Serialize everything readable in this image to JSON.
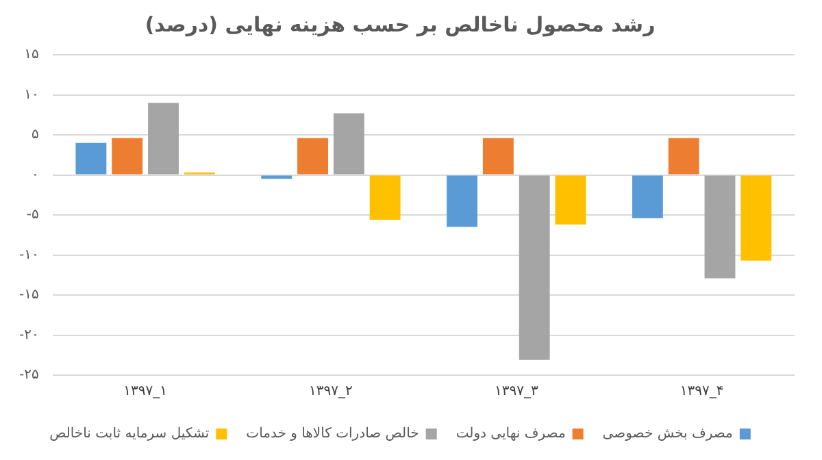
{
  "chart_data": {
    "type": "bar",
    "title": "رشد محصول ناخالص بر حسب هزینه نهایی (درصد)",
    "categories": [
      "۱۳۹۷_۱",
      "۱۳۹۷_۲",
      "۱۳۹۷_۳",
      "۱۳۹۷_۴"
    ],
    "series": [
      {
        "name": "مصرف بخش خصوصی",
        "color": "#5b9bd5",
        "values": [
          4.0,
          -0.5,
          -6.5,
          -5.4
        ]
      },
      {
        "name": "مصرف نهایی دولت",
        "color": "#ed7d31",
        "values": [
          4.6,
          4.6,
          4.6,
          4.6
        ]
      },
      {
        "name": "خالص صادرات کالاها و خدمات",
        "color": "#a5a5a5",
        "values": [
          9.0,
          7.7,
          -23.1,
          -12.9
        ]
      },
      {
        "name": "تشکیل سرمایه ثابت ناخالص",
        "color": "#ffc000",
        "values": [
          0.3,
          -5.6,
          -6.2,
          -10.7
        ]
      }
    ],
    "ylim": [
      -25,
      15
    ],
    "yticks": [
      {
        "value": 15,
        "label": "۱۵"
      },
      {
        "value": 10,
        "label": "۱۰"
      },
      {
        "value": 5,
        "label": "۵"
      },
      {
        "value": 0,
        "label": "۰"
      },
      {
        "value": -5,
        "label": "-۵"
      },
      {
        "value": -10,
        "label": "-۱۰"
      },
      {
        "value": -15,
        "label": "-۱۵"
      },
      {
        "value": -20,
        "label": "-۲۰"
      },
      {
        "value": -25,
        "label": "-۲۵"
      }
    ],
    "grid": "y",
    "legend": "bottom"
  }
}
